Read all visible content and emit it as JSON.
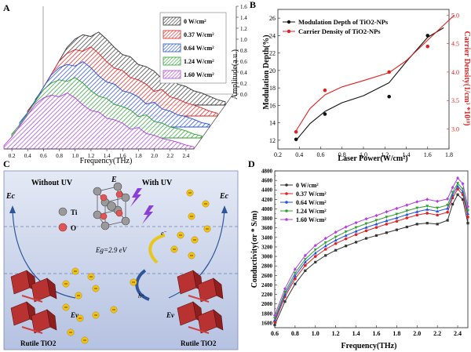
{
  "panel_letters": {
    "a": "A",
    "b": "B",
    "c": "C",
    "d": "D"
  },
  "chart_data": [
    {
      "panel": "A",
      "type": "area",
      "xlabel": "Frequency(THz)",
      "ylabel": "Amplitude(a.u.)",
      "xticks": [
        "0.2",
        "0.4",
        "0.6",
        "0.8",
        "1.0",
        "1.2",
        "1.4",
        "1.6",
        "1.8",
        "2.0",
        "2.2",
        "2.4"
      ],
      "yticks": [
        "0.0",
        "0.2",
        "0.4",
        "0.6",
        "0.8",
        "1.0",
        "1.2",
        "1.4",
        "1.6"
      ],
      "xlim": [
        0.1,
        2.5
      ],
      "ylim": [
        0,
        1.6
      ],
      "legend_position": "top-right",
      "series": [
        {
          "name": "0 W/cm²",
          "color": "#333333",
          "x": [
            0.1,
            0.2,
            0.3,
            0.4,
            0.5,
            0.6,
            0.7,
            0.8,
            0.9,
            1.0,
            1.1,
            1.2,
            1.3,
            1.4,
            1.5,
            1.6,
            1.7,
            1.8,
            1.9,
            2.0,
            2.1,
            2.2,
            2.3,
            2.4,
            2.5
          ],
          "values": [
            0.1,
            0.3,
            0.55,
            0.8,
            1.05,
            1.2,
            1.28,
            1.25,
            1.33,
            1.2,
            1.05,
            0.92,
            0.88,
            0.74,
            0.7,
            0.62,
            0.48,
            0.52,
            0.38,
            0.34,
            0.26,
            0.22,
            0.16,
            0.1,
            0.06
          ]
        },
        {
          "name": "0.37 W/cm²",
          "color": "#e02020",
          "x": [
            0.1,
            0.2,
            0.3,
            0.4,
            0.5,
            0.6,
            0.7,
            0.8,
            0.9,
            1.0,
            1.1,
            1.2,
            1.3,
            1.4,
            1.5,
            1.6,
            1.7,
            1.8,
            1.9,
            2.0,
            2.1,
            2.2,
            2.3,
            2.4,
            2.5
          ],
          "values": [
            0.09,
            0.28,
            0.52,
            0.76,
            1.0,
            1.14,
            1.21,
            1.18,
            1.26,
            1.14,
            0.99,
            0.87,
            0.83,
            0.7,
            0.66,
            0.58,
            0.45,
            0.48,
            0.35,
            0.31,
            0.24,
            0.2,
            0.15,
            0.09,
            0.05
          ]
        },
        {
          "name": "0.64 W/cm²",
          "color": "#2050e0",
          "x": [
            0.1,
            0.2,
            0.3,
            0.4,
            0.5,
            0.6,
            0.7,
            0.8,
            0.9,
            1.0,
            1.1,
            1.2,
            1.3,
            1.4,
            1.5,
            1.6,
            1.7,
            1.8,
            1.9,
            2.0,
            2.1,
            2.2,
            2.3,
            2.4,
            2.5
          ],
          "values": [
            0.08,
            0.26,
            0.49,
            0.72,
            0.95,
            1.08,
            1.14,
            1.11,
            1.19,
            1.08,
            0.93,
            0.82,
            0.78,
            0.66,
            0.62,
            0.55,
            0.42,
            0.45,
            0.33,
            0.29,
            0.22,
            0.19,
            0.14,
            0.08,
            0.05
          ]
        },
        {
          "name": "1.24 W/cm²",
          "color": "#2ea02e",
          "x": [
            0.1,
            0.2,
            0.3,
            0.4,
            0.5,
            0.6,
            0.7,
            0.8,
            0.9,
            1.0,
            1.1,
            1.2,
            1.3,
            1.4,
            1.5,
            1.6,
            1.7,
            1.8,
            1.9,
            2.0,
            2.1,
            2.2,
            2.3,
            2.4,
            2.5
          ],
          "values": [
            0.07,
            0.24,
            0.45,
            0.67,
            0.88,
            1.0,
            1.06,
            1.03,
            1.1,
            1.0,
            0.86,
            0.76,
            0.72,
            0.61,
            0.57,
            0.51,
            0.39,
            0.42,
            0.3,
            0.27,
            0.2,
            0.17,
            0.13,
            0.07,
            0.04
          ]
        },
        {
          "name": "1.60 W/cm²",
          "color": "#b040e0",
          "x": [
            0.1,
            0.2,
            0.3,
            0.4,
            0.5,
            0.6,
            0.7,
            0.8,
            0.9,
            1.0,
            1.1,
            1.2,
            1.3,
            1.4,
            1.5,
            1.6,
            1.7,
            1.8,
            1.9,
            2.0,
            2.1,
            2.2,
            2.3,
            2.4,
            2.5
          ],
          "values": [
            0.06,
            0.22,
            0.42,
            0.62,
            0.82,
            0.93,
            0.98,
            0.95,
            1.02,
            0.93,
            0.8,
            0.7,
            0.67,
            0.56,
            0.53,
            0.47,
            0.36,
            0.39,
            0.28,
            0.25,
            0.19,
            0.16,
            0.12,
            0.07,
            0.04
          ]
        }
      ]
    },
    {
      "panel": "B",
      "type": "scatter",
      "xlabel": "Laser Power(W/cm²)",
      "ylabel": "Modulation Depth(%)",
      "y2label": "Carrier Density(1/cm³ *10¹⁸)",
      "xlim": [
        0.2,
        1.8
      ],
      "ylim": [
        11,
        27
      ],
      "y2lim": [
        2.65,
        5.1
      ],
      "xticks": [
        "0.2",
        "0.4",
        "0.6",
        "0.8",
        "1.0",
        "1.2",
        "1.4",
        "1.6",
        "1.8"
      ],
      "yticks": [
        "12",
        "14",
        "16",
        "18",
        "20",
        "22",
        "24",
        "26"
      ],
      "y2ticks": [
        "3.0",
        "3.5",
        "4.0",
        "4.5",
        "5.0"
      ],
      "legend_position": "top-left",
      "series": [
        {
          "name": "Modulation Depth of TiO2-NPs",
          "axis": "left",
          "color": "#111111",
          "x": [
            0.37,
            0.64,
            1.24,
            1.6
          ],
          "values": [
            12.1,
            15.0,
            17.0,
            24.0
          ],
          "fit_x": [
            0.37,
            0.5,
            0.64,
            0.8,
            1.0,
            1.24,
            1.4,
            1.6,
            1.75
          ],
          "fit_y": [
            12.0,
            13.9,
            15.3,
            16.3,
            17.1,
            18.6,
            21.0,
            23.8,
            24.9
          ]
        },
        {
          "name": "Carrier Density of TiO2-NPs",
          "axis": "right",
          "color": "#e02020",
          "x": [
            0.37,
            0.64,
            1.24,
            1.6
          ],
          "values": [
            2.95,
            3.68,
            4.0,
            4.45
          ],
          "fit_x": [
            0.37,
            0.5,
            0.64,
            0.8,
            1.0,
            1.24,
            1.4,
            1.6,
            1.85
          ],
          "fit_y": [
            2.97,
            3.36,
            3.6,
            3.74,
            3.85,
            3.99,
            4.2,
            4.56,
            5.0
          ]
        }
      ]
    },
    {
      "panel": "D",
      "type": "line",
      "xlabel": "Frequency(THz)",
      "ylabel": "Conductivity(σr * S/m)",
      "xlim": [
        0.6,
        2.5
      ],
      "ylim": [
        1500,
        4800
      ],
      "xticks": [
        "0.6",
        "0.8",
        "1.0",
        "1.2",
        "1.4",
        "1.6",
        "1.8",
        "2.0",
        "2.2",
        "2.4"
      ],
      "yticks": [
        "1500",
        "1600",
        "1700",
        "1800",
        "1900",
        "2000",
        "2100",
        "2200",
        "2300",
        "2400",
        "2500",
        "2600",
        "2700",
        "2800",
        "2900",
        "3000",
        "3100",
        "3200",
        "3300",
        "3400",
        "3500",
        "3600",
        "3700",
        "3800",
        "3900",
        "4000",
        "4100",
        "4200",
        "4300",
        "4400",
        "4500",
        "4600",
        "4700",
        "4800"
      ],
      "ytick_labels": [
        "",
        "1600",
        "",
        "1800",
        "",
        "2000",
        "",
        "2200",
        "",
        "2400",
        "",
        "2600",
        "",
        "2800",
        "",
        "3000",
        "",
        "3200",
        "",
        "3400",
        "",
        "3600",
        "",
        "3800",
        "",
        "4000",
        "",
        "4200",
        "",
        "4400",
        "",
        "4600",
        "",
        "4800"
      ],
      "legend_position": "top-left",
      "x": [
        0.6,
        0.7,
        0.8,
        0.9,
        1.0,
        1.1,
        1.2,
        1.3,
        1.4,
        1.5,
        1.6,
        1.7,
        1.8,
        1.9,
        2.0,
        2.1,
        2.2,
        2.3,
        2.35,
        2.4,
        2.45,
        2.5
      ],
      "series": [
        {
          "name": "0 W/cm²",
          "color": "#333333",
          "values": [
            1560,
            2050,
            2420,
            2700,
            2880,
            3020,
            3130,
            3220,
            3300,
            3380,
            3440,
            3500,
            3560,
            3620,
            3680,
            3700,
            3680,
            3760,
            4100,
            4300,
            4200,
            3700
          ]
        },
        {
          "name": "0.37 W/cm²",
          "color": "#e02020",
          "values": [
            1620,
            2150,
            2530,
            2810,
            3000,
            3150,
            3270,
            3370,
            3460,
            3540,
            3610,
            3680,
            3740,
            3810,
            3870,
            3910,
            3870,
            3930,
            4230,
            4420,
            4300,
            3830
          ]
        },
        {
          "name": "0.64 W/cm²",
          "color": "#2050e0",
          "values": [
            1660,
            2200,
            2590,
            2880,
            3070,
            3220,
            3340,
            3440,
            3530,
            3610,
            3680,
            3750,
            3810,
            3880,
            3940,
            3990,
            3950,
            4010,
            4290,
            4480,
            4360,
            3900
          ]
        },
        {
          "name": "1.24 W/cm²",
          "color": "#2ea02e",
          "values": [
            1700,
            2250,
            2650,
            2940,
            3140,
            3290,
            3410,
            3520,
            3610,
            3690,
            3760,
            3830,
            3890,
            3960,
            4020,
            4060,
            4020,
            4080,
            4350,
            4540,
            4420,
            3960
          ]
        },
        {
          "name": "1.60 W/cm²",
          "color": "#b040e0",
          "values": [
            1760,
            2320,
            2730,
            3020,
            3230,
            3380,
            3510,
            3620,
            3710,
            3790,
            3860,
            3940,
            4010,
            4080,
            4150,
            4200,
            4160,
            4210,
            4450,
            4650,
            4530,
            4050
          ]
        }
      ]
    }
  ],
  "panel_c": {
    "without_uv": "Without UV",
    "with_uv": "With UV",
    "e_label": "E",
    "ec_left": "Ec",
    "ec_right": "Ec",
    "ev_left": "Ev",
    "ev_right": "Ev",
    "eg_label": "Eg=2.9 eV",
    "ti_label": "Ti",
    "o_label": "O",
    "e_minus": "e⁻",
    "h_plus": "h⁺",
    "rutile_left": "Rutile TiO2",
    "rutile_right": "Rutile TiO2",
    "colors": {
      "bg_top": "#dde4f2",
      "bg_bottom": "#b9c6e4",
      "electron": "#f2c21a",
      "crystal": "#c0392b",
      "arrow": "#2f5597",
      "bolt": "#8b3fd9"
    }
  }
}
